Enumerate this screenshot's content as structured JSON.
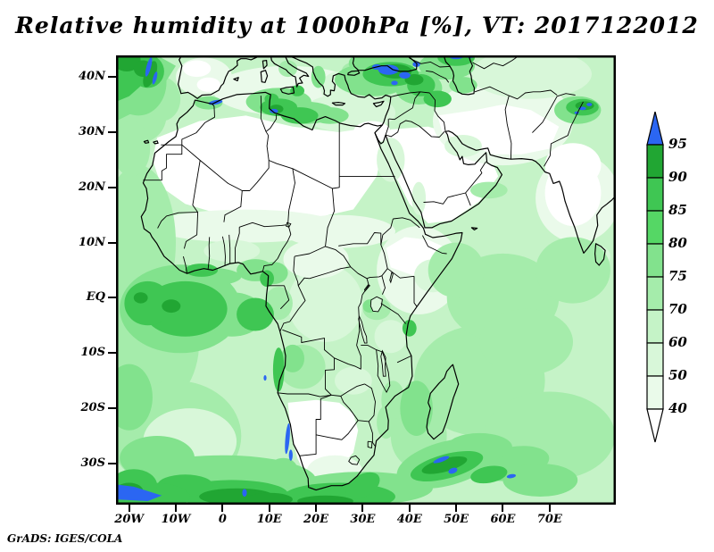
{
  "title": "Relative humidity at 1000hPa [%], VT: 2017122012",
  "attribution": "GrADS: IGES/COLA",
  "axes": {
    "x_tick_labels": [
      "20W",
      "10W",
      "0",
      "10E",
      "20E",
      "30E",
      "40E",
      "50E",
      "60E",
      "70E"
    ],
    "y_tick_labels": [
      "40N",
      "30N",
      "20N",
      "10N",
      "EQ",
      "10S",
      "20S",
      "30S"
    ]
  },
  "colorbar": {
    "tick_labels": [
      "95",
      "90",
      "85",
      "80",
      "75",
      "70",
      "60",
      "50",
      "40"
    ],
    "segment_colors_top_to_bottom": [
      "#21a633",
      "#3fc653",
      "#55d765",
      "#82e28d",
      "#a5ecab",
      "#c5f3c7",
      "#d8f7d9",
      "#eafaea"
    ],
    "above_max_color": "#2b66f2",
    "below_min_color": "#ffffff"
  },
  "chart_data": {
    "type": "heatmap",
    "title": "Relative humidity at 1000hPa [%], VT: 2017122012",
    "variable": "relative humidity",
    "pressure_level": "1000hPa",
    "units": "%",
    "valid_time": "2017122012",
    "renderer": "GrADS: IGES/COLA",
    "x_axis": {
      "tick_labels": [
        "20W",
        "10W",
        "0",
        "10E",
        "20E",
        "30E",
        "40E",
        "50E",
        "60E",
        "70E"
      ],
      "extent_deg_lon": [
        -23,
        84
      ]
    },
    "y_axis": {
      "tick_labels": [
        "40N",
        "30N",
        "20N",
        "10N",
        "EQ",
        "10S",
        "20S",
        "30S"
      ],
      "extent_deg_lat": [
        -37,
        44
      ]
    },
    "contour_levels": [
      40,
      50,
      60,
      70,
      75,
      80,
      85,
      90,
      95
    ],
    "palette": {
      ">95": "#2b66f2",
      "90-95": "#21a633",
      "85-90": "#3fc653",
      "80-85": "#55d765",
      "75-80": "#82e28d",
      "70-75": "#a5ecab",
      "60-70": "#c5f3c7",
      "50-60": "#d8f7d9",
      "40-50": "#eafaea",
      "<40": "#ffffff"
    },
    "legend_position": "right",
    "grid": false,
    "regions_approx": [
      {
        "region": "Sahara Desert, Egypt, Arabian Peninsula, Iran",
        "value_pct": "<40-50"
      },
      {
        "region": "Namibia / Kalahari / interior South Africa",
        "value_pct": "<40-50"
      },
      {
        "region": "Ethiopia / Horn of Africa interior",
        "value_pct": "<40-55"
      },
      {
        "region": "interior India and Madagascar interior",
        "value_pct": "<50"
      },
      {
        "region": "Congo basin and Sahel fringe",
        "value_pct": "50-70"
      },
      {
        "region": "open Atlantic and Indian Ocean",
        "value_pct": "60-80"
      },
      {
        "region": "equatorial Atlantic / Gulf of Guinea coast",
        "value_pct": "80-90 with >95 specks"
      },
      {
        "region": "NE Atlantic top-left corner",
        "value_pct": "85-95 with >95 streaks"
      },
      {
        "region": "Tunisia-Libya Mediterranean coastal band",
        "value_pct": "80-95 with >95 spot near Gulf of Gabes"
      },
      {
        "region": "Turkey / Black Sea / Caucasus",
        "value_pct": "85->95 (blue patches)"
      },
      {
        "region": "NW Himalaya top-right",
        "value_pct": "85->95 (blue specks)"
      },
      {
        "region": "Namibian coastal strip",
        "value_pct": ">95 narrow blue strip"
      },
      {
        "region": "Southern Ocean band 33S-37S",
        "value_pct": "80-95 with >95 patches at SW corner"
      },
      {
        "region": "band southeast of Madagascar",
        "value_pct": "80-95 with >95 streaks"
      }
    ]
  }
}
